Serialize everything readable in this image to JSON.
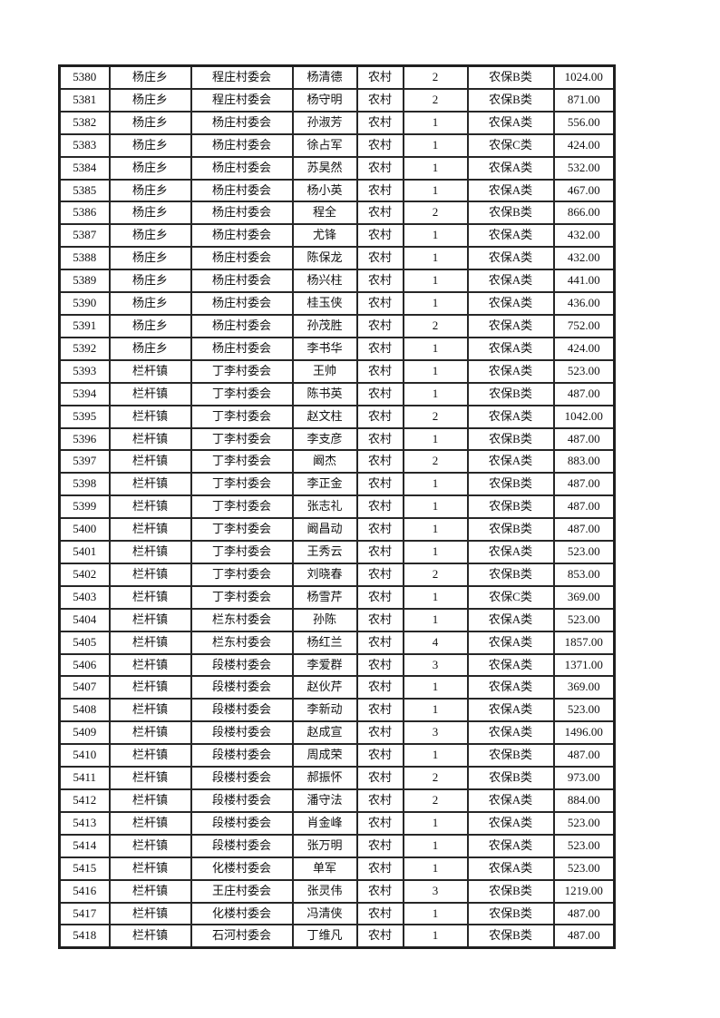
{
  "page": {
    "background_color": "#ffffff",
    "border_color": "#272727"
  },
  "table": {
    "rows": [
      [
        "5380",
        "杨庄乡",
        "程庄村委会",
        "杨清德",
        "农村",
        "2",
        "农保B类",
        "1024.00"
      ],
      [
        "5381",
        "杨庄乡",
        "程庄村委会",
        "杨守明",
        "农村",
        "2",
        "农保B类",
        "871.00"
      ],
      [
        "5382",
        "杨庄乡",
        "杨庄村委会",
        "孙淑芳",
        "农村",
        "1",
        "农保A类",
        "556.00"
      ],
      [
        "5383",
        "杨庄乡",
        "杨庄村委会",
        "徐占军",
        "农村",
        "1",
        "农保C类",
        "424.00"
      ],
      [
        "5384",
        "杨庄乡",
        "杨庄村委会",
        "苏昊然",
        "农村",
        "1",
        "农保A类",
        "532.00"
      ],
      [
        "5385",
        "杨庄乡",
        "杨庄村委会",
        "杨小英",
        "农村",
        "1",
        "农保A类",
        "467.00"
      ],
      [
        "5386",
        "杨庄乡",
        "杨庄村委会",
        "程全",
        "农村",
        "2",
        "农保B类",
        "866.00"
      ],
      [
        "5387",
        "杨庄乡",
        "杨庄村委会",
        "尤锋",
        "农村",
        "1",
        "农保A类",
        "432.00"
      ],
      [
        "5388",
        "杨庄乡",
        "杨庄村委会",
        "陈保龙",
        "农村",
        "1",
        "农保A类",
        "432.00"
      ],
      [
        "5389",
        "杨庄乡",
        "杨庄村委会",
        "杨兴柱",
        "农村",
        "1",
        "农保A类",
        "441.00"
      ],
      [
        "5390",
        "杨庄乡",
        "杨庄村委会",
        "桂玉侠",
        "农村",
        "1",
        "农保A类",
        "436.00"
      ],
      [
        "5391",
        "杨庄乡",
        "杨庄村委会",
        "孙茂胜",
        "农村",
        "2",
        "农保A类",
        "752.00"
      ],
      [
        "5392",
        "杨庄乡",
        "杨庄村委会",
        "李书华",
        "农村",
        "1",
        "农保A类",
        "424.00"
      ],
      [
        "5393",
        "栏杆镇",
        "丁李村委会",
        "王帅",
        "农村",
        "1",
        "农保A类",
        "523.00"
      ],
      [
        "5394",
        "栏杆镇",
        "丁李村委会",
        "陈书英",
        "农村",
        "1",
        "农保B类",
        "487.00"
      ],
      [
        "5395",
        "栏杆镇",
        "丁李村委会",
        "赵文柱",
        "农村",
        "2",
        "农保A类",
        "1042.00"
      ],
      [
        "5396",
        "栏杆镇",
        "丁李村委会",
        "李支彦",
        "农村",
        "1",
        "农保B类",
        "487.00"
      ],
      [
        "5397",
        "栏杆镇",
        "丁李村委会",
        "阚杰",
        "农村",
        "2",
        "农保A类",
        "883.00"
      ],
      [
        "5398",
        "栏杆镇",
        "丁李村委会",
        "李正金",
        "农村",
        "1",
        "农保B类",
        "487.00"
      ],
      [
        "5399",
        "栏杆镇",
        "丁李村委会",
        "张志礼",
        "农村",
        "1",
        "农保B类",
        "487.00"
      ],
      [
        "5400",
        "栏杆镇",
        "丁李村委会",
        "阚昌动",
        "农村",
        "1",
        "农保B类",
        "487.00"
      ],
      [
        "5401",
        "栏杆镇",
        "丁李村委会",
        "王秀云",
        "农村",
        "1",
        "农保A类",
        "523.00"
      ],
      [
        "5402",
        "栏杆镇",
        "丁李村委会",
        "刘晓春",
        "农村",
        "2",
        "农保B类",
        "853.00"
      ],
      [
        "5403",
        "栏杆镇",
        "丁李村委会",
        "杨雪芹",
        "农村",
        "1",
        "农保C类",
        "369.00"
      ],
      [
        "5404",
        "栏杆镇",
        "栏东村委会",
        "孙陈",
        "农村",
        "1",
        "农保A类",
        "523.00"
      ],
      [
        "5405",
        "栏杆镇",
        "栏东村委会",
        "杨红兰",
        "农村",
        "4",
        "农保A类",
        "1857.00"
      ],
      [
        "5406",
        "栏杆镇",
        "段楼村委会",
        "李爱群",
        "农村",
        "3",
        "农保A类",
        "1371.00"
      ],
      [
        "5407",
        "栏杆镇",
        "段楼村委会",
        "赵伙芹",
        "农村",
        "1",
        "农保A类",
        "369.00"
      ],
      [
        "5408",
        "栏杆镇",
        "段楼村委会",
        "李新动",
        "农村",
        "1",
        "农保A类",
        "523.00"
      ],
      [
        "5409",
        "栏杆镇",
        "段楼村委会",
        "赵成宣",
        "农村",
        "3",
        "农保A类",
        "1496.00"
      ],
      [
        "5410",
        "栏杆镇",
        "段楼村委会",
        "周成荣",
        "农村",
        "1",
        "农保B类",
        "487.00"
      ],
      [
        "5411",
        "栏杆镇",
        "段楼村委会",
        "郝振怀",
        "农村",
        "2",
        "农保B类",
        "973.00"
      ],
      [
        "5412",
        "栏杆镇",
        "段楼村委会",
        "潘守法",
        "农村",
        "2",
        "农保A类",
        "884.00"
      ],
      [
        "5413",
        "栏杆镇",
        "段楼村委会",
        "肖金峰",
        "农村",
        "1",
        "农保A类",
        "523.00"
      ],
      [
        "5414",
        "栏杆镇",
        "段楼村委会",
        "张万明",
        "农村",
        "1",
        "农保A类",
        "523.00"
      ],
      [
        "5415",
        "栏杆镇",
        "化楼村委会",
        "单军",
        "农村",
        "1",
        "农保A类",
        "523.00"
      ],
      [
        "5416",
        "栏杆镇",
        "王庄村委会",
        "张灵伟",
        "农村",
        "3",
        "农保B类",
        "1219.00"
      ],
      [
        "5417",
        "栏杆镇",
        "化楼村委会",
        "冯清侠",
        "农村",
        "1",
        "农保B类",
        "487.00"
      ],
      [
        "5418",
        "栏杆镇",
        "石河村委会",
        "丁维凡",
        "农村",
        "1",
        "农保B类",
        "487.00"
      ]
    ]
  }
}
